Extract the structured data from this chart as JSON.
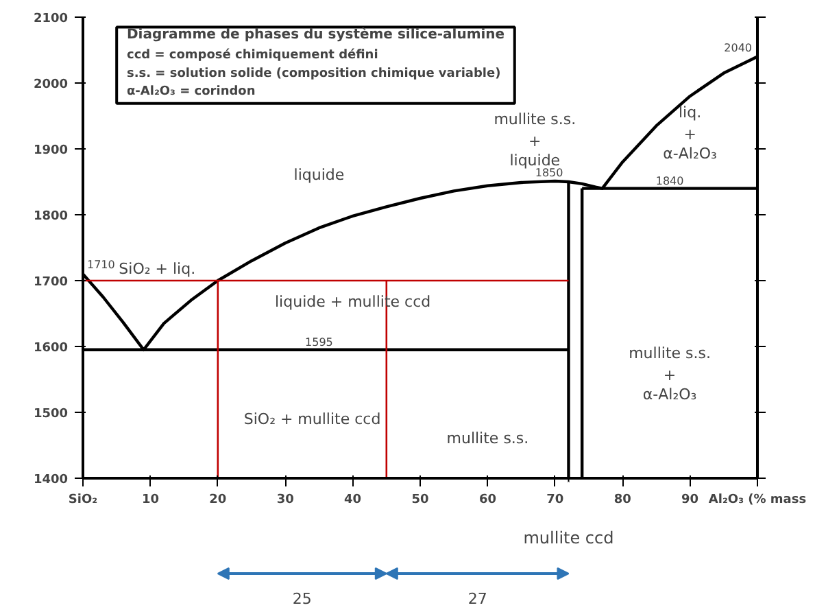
{
  "chart_data": {
    "type": "line",
    "xlim": [
      0,
      100
    ],
    "ylim": [
      1400,
      2100
    ],
    "xticks": [
      {
        "value": 0,
        "label": "SiO₂"
      },
      10,
      20,
      30,
      40,
      50,
      60,
      70,
      80,
      90,
      {
        "value": 100,
        "label": "Al₂O₃ (% mass"
      }
    ],
    "yticks": [
      1400,
      1500,
      1600,
      1700,
      1800,
      1900,
      2000,
      2100
    ],
    "grid": false,
    "marker": "none",
    "line_style": "solid",
    "series": [
      {
        "color": "#000000",
        "x": [
          0,
          3,
          6,
          9,
          12,
          16,
          20,
          25,
          30,
          35,
          40,
          45,
          50,
          55,
          60,
          65,
          70,
          72,
          74,
          76,
          77,
          80,
          85,
          90,
          95,
          100
        ],
        "values": [
          1710,
          1675,
          1636,
          1595,
          1635,
          1670,
          1700,
          1730,
          1757,
          1780,
          1798,
          1812,
          1825,
          1836,
          1844,
          1849,
          1851,
          1850,
          1847,
          1842,
          1840,
          1880,
          1935,
          1980,
          2015,
          2040
        ]
      },
      {
        "color": "#000000",
        "x": [
          0,
          72
        ],
        "values": [
          1595,
          1595
        ]
      },
      {
        "color": "#000000",
        "x": [
          74,
          100
        ],
        "values": [
          1840,
          1840
        ]
      },
      {
        "color": "#000000",
        "x": [
          72,
          72
        ],
        "values": [
          1400,
          1850
        ]
      },
      {
        "color": "#000000",
        "x": [
          74,
          74
        ],
        "values": [
          1400,
          1840
        ]
      },
      {
        "color": "#c00000",
        "x": [
          0,
          72
        ],
        "values": [
          1700,
          1700
        ]
      },
      {
        "color": "#c00000",
        "x": [
          20,
          20
        ],
        "values": [
          1400,
          1700
        ]
      },
      {
        "color": "#c00000",
        "x": [
          45,
          45
        ],
        "values": [
          1400,
          1700
        ]
      }
    ],
    "annotations": [
      "Diagramme de phases du système silice-alumine",
      "ccd = composé chimiquement défini",
      "s.s. = solution solide (composition chimique variable)",
      "α-Al₂O₃ = corindon",
      "liquide",
      "SiO₂ + liq.",
      "liquide + mullite ccd",
      "SiO₂ + mullite ccd",
      "mullite s.s.",
      "mullite s.s. + liquide",
      "liq. + α-Al₂O₃",
      "mullite s.s. + α-Al₂O₃",
      "mullite ccd",
      "25",
      "27",
      {
        "text": "1710",
        "x": 0,
        "y": 1710
      },
      {
        "text": "1595",
        "x": 35,
        "y": 1595
      },
      {
        "text": "1850",
        "x": 72,
        "y": 1850
      },
      {
        "text": "1840",
        "x": 87,
        "y": 1840
      },
      {
        "text": "2040",
        "x": 100,
        "y": 2040
      }
    ]
  }
}
